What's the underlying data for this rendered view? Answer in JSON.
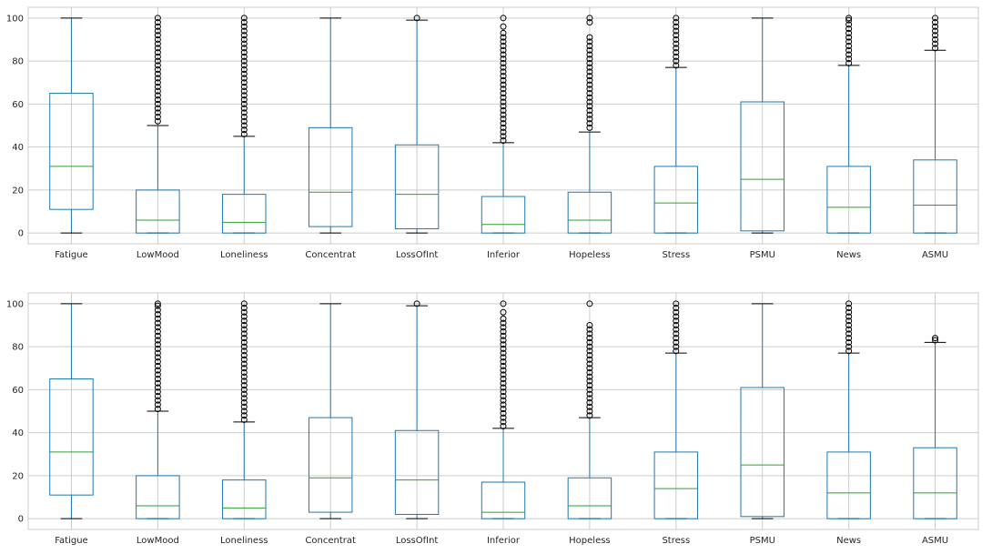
{
  "chart_data": [
    {
      "type": "boxplot",
      "categories": [
        "Fatigue",
        "LowMood",
        "Loneliness",
        "Concentrat",
        "LossOfInt",
        "Inferior",
        "Hopeless",
        "Stress",
        "PSMU",
        "News",
        "ASMU"
      ],
      "ylim": [
        -5,
        105
      ],
      "yticks": [
        0,
        20,
        40,
        60,
        80,
        100
      ],
      "grid": true,
      "colors": {
        "box": "#1f77b4",
        "median": "#2ca02c",
        "whisker": "#1f77b4",
        "cap": "#000000",
        "flier": "#000000",
        "grid": "#cccccc"
      },
      "boxes": [
        {
          "label": "Fatigue",
          "whislo": 0,
          "q1": 11,
          "med": 31,
          "q3": 65,
          "whishi": 100,
          "fliers": []
        },
        {
          "label": "LowMood",
          "whislo": 0,
          "q1": 0,
          "med": 6,
          "q3": 20,
          "whishi": 50,
          "fliers": [
            52,
            54,
            56,
            58,
            60,
            62,
            64,
            66,
            68,
            70,
            72,
            74,
            76,
            78,
            80,
            82,
            84,
            86,
            88,
            90,
            92,
            94,
            96,
            98,
            100
          ]
        },
        {
          "label": "Loneliness",
          "whislo": 0,
          "q1": 0,
          "med": 5,
          "q3": 18,
          "whishi": 45,
          "fliers": [
            46,
            48,
            50,
            52,
            54,
            56,
            58,
            60,
            62,
            64,
            66,
            68,
            70,
            72,
            74,
            76,
            78,
            80,
            82,
            84,
            86,
            88,
            90,
            92,
            94,
            96,
            98,
            100
          ]
        },
        {
          "label": "Concentrat",
          "whislo": 0,
          "q1": 3,
          "med": 19,
          "q3": 49,
          "whishi": 100,
          "fliers": []
        },
        {
          "label": "LossOfInt",
          "whislo": 0,
          "q1": 2,
          "med": 18,
          "q3": 41,
          "whishi": 99,
          "fliers": [
            100
          ]
        },
        {
          "label": "Inferior",
          "whislo": 0,
          "q1": 0,
          "med": 4,
          "q3": 17,
          "whishi": 42,
          "fliers": [
            43,
            45,
            47,
            49,
            51,
            53,
            55,
            57,
            59,
            61,
            63,
            65,
            67,
            69,
            71,
            73,
            75,
            77,
            79,
            81,
            83,
            85,
            87,
            89,
            91,
            93,
            96,
            100
          ]
        },
        {
          "label": "Hopeless",
          "whislo": 0,
          "q1": 0,
          "med": 6,
          "q3": 19,
          "whishi": 47,
          "fliers": [
            49,
            51,
            53,
            55,
            57,
            59,
            61,
            63,
            65,
            67,
            69,
            71,
            73,
            75,
            77,
            79,
            81,
            83,
            85,
            87,
            89,
            91,
            98,
            100
          ]
        },
        {
          "label": "Stress",
          "whislo": 0,
          "q1": 0,
          "med": 14,
          "q3": 31,
          "whishi": 77,
          "fliers": [
            78,
            80,
            82,
            84,
            86,
            88,
            90,
            92,
            94,
            96,
            98,
            100
          ]
        },
        {
          "label": "PSMU",
          "whislo": 0,
          "q1": 1,
          "med": 25,
          "q3": 61,
          "whishi": 100,
          "fliers": []
        },
        {
          "label": "News",
          "whislo": 0,
          "q1": 0,
          "med": 12,
          "q3": 31,
          "whishi": 78,
          "fliers": [
            79,
            81,
            83,
            85,
            87,
            89,
            91,
            93,
            95,
            97,
            99,
            100
          ]
        },
        {
          "label": "ASMU",
          "whislo": 0,
          "q1": 0,
          "med": 13,
          "q3": 34,
          "whishi": 85,
          "fliers": [
            86,
            88,
            90,
            92,
            94,
            96,
            98,
            100
          ]
        }
      ]
    },
    {
      "type": "boxplot",
      "categories": [
        "Fatigue",
        "LowMood",
        "Loneliness",
        "Concentrat",
        "LossOfInt",
        "Inferior",
        "Hopeless",
        "Stress",
        "PSMU",
        "News",
        "ASMU"
      ],
      "ylim": [
        -5,
        105
      ],
      "yticks": [
        0,
        20,
        40,
        60,
        80,
        100
      ],
      "grid": true,
      "colors": {
        "box": "#1f77b4",
        "median": "#2ca02c",
        "whisker": "#1f77b4",
        "cap": "#000000",
        "flier": "#000000",
        "grid": "#cccccc"
      },
      "boxes": [
        {
          "label": "Fatigue",
          "whislo": 0,
          "q1": 11,
          "med": 31,
          "q3": 65,
          "whishi": 100,
          "fliers": []
        },
        {
          "label": "LowMood",
          "whislo": 0,
          "q1": 0,
          "med": 6,
          "q3": 20,
          "whishi": 50,
          "fliers": [
            51,
            53,
            55,
            57,
            59,
            61,
            63,
            65,
            67,
            69,
            71,
            73,
            75,
            77,
            79,
            81,
            83,
            85,
            87,
            89,
            91,
            93,
            95,
            97,
            99,
            100
          ]
        },
        {
          "label": "Loneliness",
          "whislo": 0,
          "q1": 0,
          "med": 5,
          "q3": 18,
          "whishi": 45,
          "fliers": [
            46,
            48,
            50,
            52,
            54,
            56,
            58,
            60,
            62,
            64,
            66,
            68,
            70,
            72,
            74,
            76,
            78,
            80,
            82,
            84,
            86,
            88,
            90,
            92,
            94,
            96,
            98,
            100
          ]
        },
        {
          "label": "Concentrat",
          "whislo": 0,
          "q1": 3,
          "med": 19,
          "q3": 47,
          "whishi": 100,
          "fliers": []
        },
        {
          "label": "LossOfInt",
          "whislo": 0,
          "q1": 2,
          "med": 18,
          "q3": 41,
          "whishi": 99,
          "fliers": [
            100
          ]
        },
        {
          "label": "Inferior",
          "whislo": 0,
          "q1": 0,
          "med": 3,
          "q3": 17,
          "whishi": 42,
          "fliers": [
            43,
            45,
            47,
            49,
            51,
            53,
            55,
            57,
            59,
            61,
            63,
            65,
            67,
            69,
            71,
            73,
            75,
            77,
            79,
            81,
            83,
            85,
            87,
            89,
            91,
            93,
            96,
            100
          ]
        },
        {
          "label": "Hopeless",
          "whislo": 0,
          "q1": 0,
          "med": 6,
          "q3": 19,
          "whishi": 47,
          "fliers": [
            48,
            50,
            52,
            54,
            56,
            58,
            60,
            62,
            64,
            66,
            68,
            70,
            72,
            74,
            76,
            78,
            80,
            82,
            84,
            86,
            88,
            90,
            100
          ]
        },
        {
          "label": "Stress",
          "whislo": 0,
          "q1": 0,
          "med": 14,
          "q3": 31,
          "whishi": 77,
          "fliers": [
            78,
            80,
            82,
            84,
            86,
            88,
            90,
            92,
            94,
            96,
            98,
            100
          ]
        },
        {
          "label": "PSMU",
          "whislo": 0,
          "q1": 1,
          "med": 25,
          "q3": 61,
          "whishi": 100,
          "fliers": []
        },
        {
          "label": "News",
          "whislo": 0,
          "q1": 0,
          "med": 12,
          "q3": 31,
          "whishi": 77,
          "fliers": [
            78,
            80,
            82,
            84,
            86,
            88,
            90,
            92,
            94,
            96,
            98,
            100
          ]
        },
        {
          "label": "ASMU",
          "whislo": 0,
          "q1": 0,
          "med": 12,
          "q3": 33,
          "whishi": 82,
          "fliers": [
            83,
            84
          ]
        }
      ]
    }
  ]
}
